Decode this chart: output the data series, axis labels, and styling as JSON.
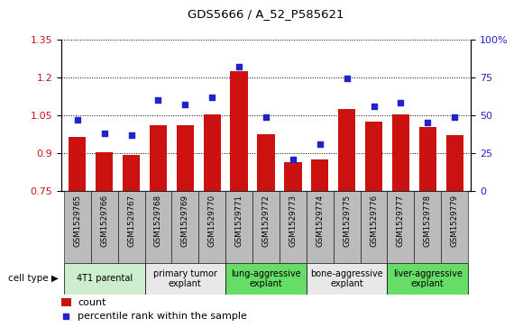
{
  "title": "GDS5666 / A_52_P585621",
  "samples": [
    "GSM1529765",
    "GSM1529766",
    "GSM1529767",
    "GSM1529768",
    "GSM1529769",
    "GSM1529770",
    "GSM1529771",
    "GSM1529772",
    "GSM1529773",
    "GSM1529774",
    "GSM1529775",
    "GSM1529776",
    "GSM1529777",
    "GSM1529778",
    "GSM1529779"
  ],
  "bar_values": [
    0.965,
    0.905,
    0.895,
    1.01,
    1.01,
    1.055,
    1.225,
    0.975,
    0.865,
    0.875,
    1.075,
    1.025,
    1.055,
    1.005,
    0.97
  ],
  "dot_values_pct": [
    47,
    38,
    37,
    60,
    57,
    62,
    82,
    49,
    21,
    31,
    74,
    56,
    58,
    45,
    49
  ],
  "bar_color": "#cc1111",
  "dot_color": "#2222cc",
  "ylim_left": [
    0.75,
    1.35
  ],
  "ylim_right": [
    0,
    100
  ],
  "yticks_left": [
    0.75,
    0.9,
    1.05,
    1.2,
    1.35
  ],
  "ytick_labels_left": [
    "0.75",
    "0.9",
    "1.05",
    "1.2",
    "1.35"
  ],
  "ytick_labels_right": [
    "0",
    "25",
    "50",
    "75",
    "100%"
  ],
  "yticks_right": [
    0,
    25,
    50,
    75,
    100
  ],
  "cell_groups": [
    {
      "label": "4T1 parental",
      "start": 0,
      "end": 2,
      "color": "#cceecc"
    },
    {
      "label": "primary tumor\nexplant",
      "start": 3,
      "end": 5,
      "color": "#e8e8e8"
    },
    {
      "label": "lung-aggressive\nexplant",
      "start": 6,
      "end": 8,
      "color": "#66dd66"
    },
    {
      "label": "bone-aggressive\nexplant",
      "start": 9,
      "end": 11,
      "color": "#e8e8e8"
    },
    {
      "label": "liver-aggressive\nexplant",
      "start": 12,
      "end": 14,
      "color": "#66dd66"
    }
  ],
  "xtick_bg_color": "#bbbbbb",
  "cell_type_label": "cell type",
  "legend_count_label": "count",
  "legend_pct_label": "percentile rank within the sample",
  "tick_label_color_left": "#cc1111",
  "tick_label_color_right": "#2222cc"
}
